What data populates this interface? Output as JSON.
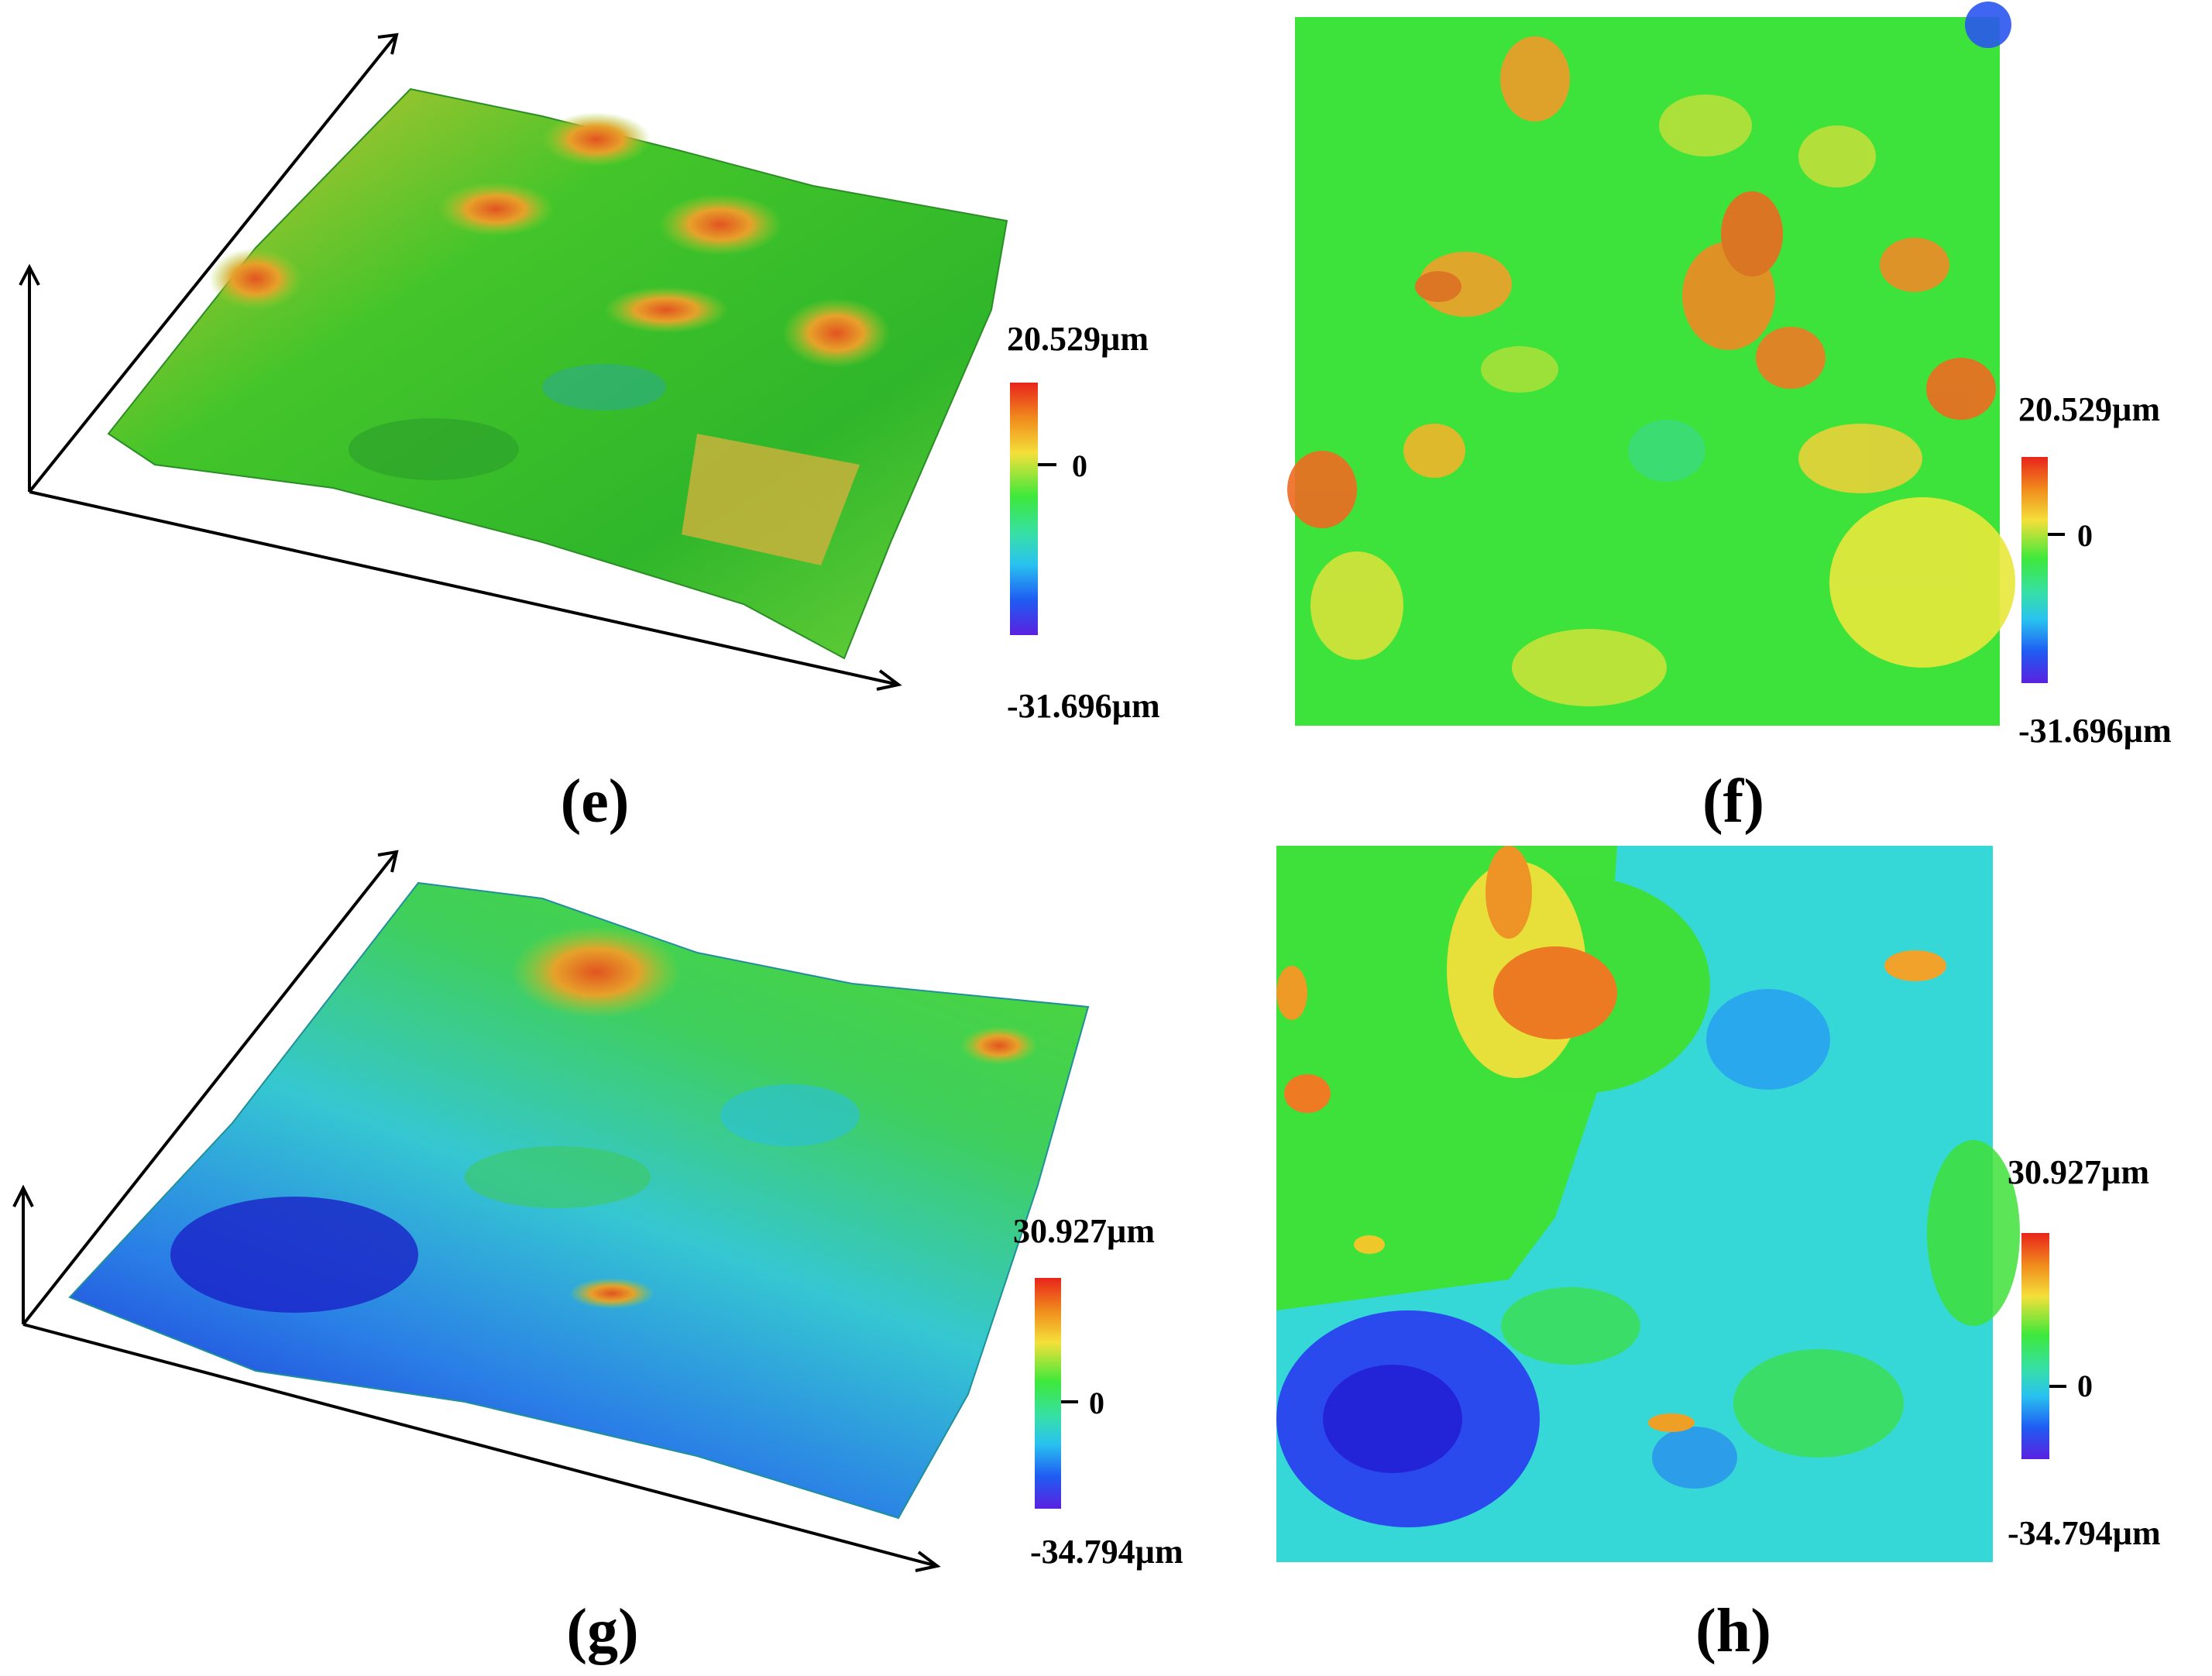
{
  "panels": [
    {
      "id": "e",
      "caption": "(e)",
      "type": "3d-surface",
      "scale_max": "20.529µm",
      "scale_mid": "0",
      "scale_min": "-31.696µm"
    },
    {
      "id": "f",
      "caption": "(f)",
      "type": "2d-heightmap",
      "scale_max": "20.529µm",
      "scale_mid": "0",
      "scale_min": "-31.696µm"
    },
    {
      "id": "g",
      "caption": "(g)",
      "type": "3d-surface",
      "scale_max": "30.927µm",
      "scale_mid": "0",
      "scale_min": "-34.794µm"
    },
    {
      "id": "h",
      "caption": "(h)",
      "type": "2d-heightmap",
      "scale_max": "30.927µm",
      "scale_mid": "0",
      "scale_min": "-34.794µm"
    }
  ],
  "colors": {
    "high": "#e8241b",
    "upper": "#f08a1c",
    "mid_high": "#f4e03a",
    "zero": "#3ee83b",
    "mid_low": "#29c2f0",
    "low": "#1f5cf2",
    "lowest": "#5a21e0"
  }
}
